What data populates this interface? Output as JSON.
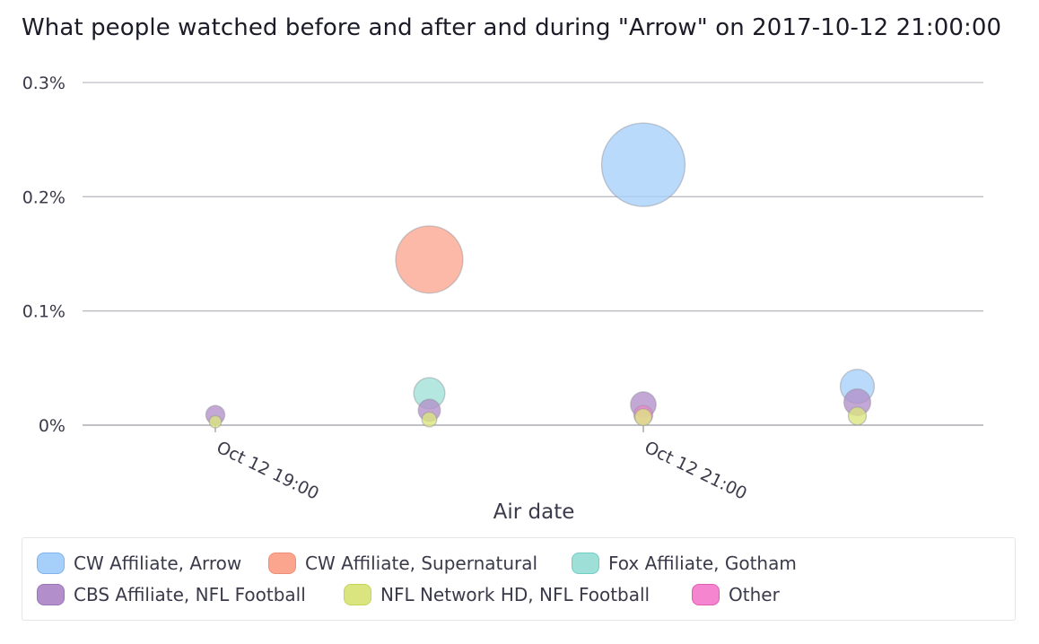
{
  "title": "What people watched before and after and during \"Arrow\" on 2017-10-12 21:00:00",
  "chart_data": {
    "type": "scatter",
    "subtype": "bubble",
    "title": "What people watched before and after and during \"Arrow\" on 2017-10-12 21:00:00",
    "xlabel": "Air date",
    "ylabel": "",
    "x_tick_labels": [
      "Oct 12 19:00",
      "Oct 12 21:00"
    ],
    "y_tick_labels": [
      "0%",
      "0.1%",
      "0.2%",
      "0.3%"
    ],
    "ylim": [
      0,
      0.3
    ],
    "y_unit": "%",
    "grid": "horizontal",
    "legend_position": "bottom",
    "series": [
      {
        "name": "CW Affiliate, Arrow",
        "color": "#a6cffa",
        "stroke": "#7fb3ea",
        "points": [
          {
            "x": "2017-10-12 21:00",
            "y": 0.228
          },
          {
            "x": "2017-10-12 22:00",
            "y": 0.034
          }
        ]
      },
      {
        "name": "CW Affiliate, Supernatural",
        "color": "#fca58e",
        "stroke": "#ee8e76",
        "points": [
          {
            "x": "2017-10-12 20:00",
            "y": 0.145
          }
        ]
      },
      {
        "name": "Fox Affiliate, Gotham",
        "color": "#9ee0d7",
        "stroke": "#6fcfc4",
        "points": [
          {
            "x": "2017-10-12 20:00",
            "y": 0.028
          }
        ]
      },
      {
        "name": "CBS Affiliate, NFL Football",
        "color": "#b28fcb",
        "stroke": "#9a76b6",
        "points": [
          {
            "x": "2017-10-12 19:00",
            "y": 0.009
          },
          {
            "x": "2017-10-12 20:00",
            "y": 0.013
          },
          {
            "x": "2017-10-12 21:00",
            "y": 0.018
          },
          {
            "x": "2017-10-12 22:00",
            "y": 0.02
          }
        ]
      },
      {
        "name": "NFL Network HD, NFL Football",
        "color": "#dbe57f",
        "stroke": "#c7d35a",
        "points": [
          {
            "x": "2017-10-12 19:00",
            "y": 0.003
          },
          {
            "x": "2017-10-12 20:00",
            "y": 0.005
          },
          {
            "x": "2017-10-12 21:00",
            "y": 0.007
          },
          {
            "x": "2017-10-12 22:00",
            "y": 0.008
          }
        ]
      },
      {
        "name": "Other",
        "color": "#f585cf",
        "stroke": "#e25bb5",
        "points": [
          {
            "x": "2017-10-12 21:00",
            "y": 0.009
          }
        ]
      }
    ]
  }
}
